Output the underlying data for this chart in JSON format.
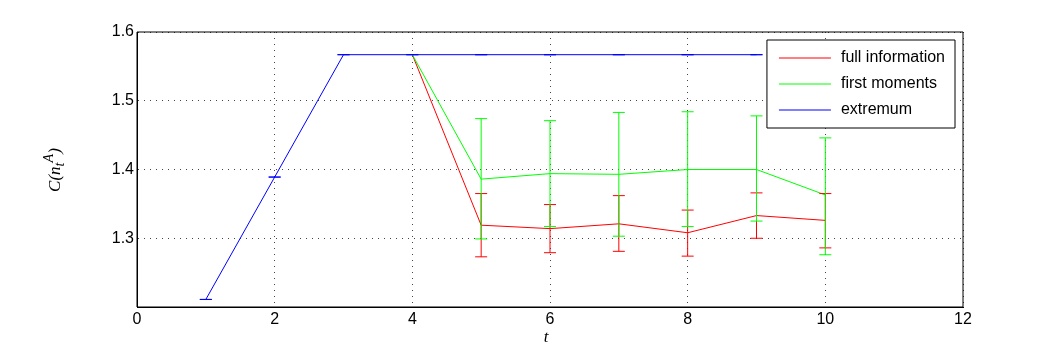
{
  "chart_data": {
    "type": "line",
    "xlabel": "t",
    "ylabel": "C(n$_{t}$$^{A}$)",
    "xlim": [
      0,
      12
    ],
    "xticks": [
      0,
      2,
      4,
      6,
      8,
      10,
      12
    ],
    "ylim": [
      1.2,
      1.6
    ],
    "yticks": [
      1.3,
      1.4,
      1.5,
      1.6
    ],
    "grid": true,
    "legend": "top right",
    "marker": "none",
    "line_style": "solid",
    "series": [
      {
        "name": "full information",
        "color": "#ff0000",
        "x": [
          4,
          5,
          6,
          7,
          8,
          9,
          10
        ],
        "values": [
          1.567,
          1.319,
          1.314,
          1.321,
          1.308,
          1.333,
          1.326
        ],
        "errors": [
          null,
          [
            1.273,
            1.365
          ],
          [
            1.279,
            1.349
          ],
          [
            1.281,
            1.362
          ],
          [
            1.274,
            1.341
          ],
          [
            1.3,
            1.366
          ],
          [
            1.286,
            1.365
          ]
        ]
      },
      {
        "name": "first moments",
        "color": "#00ff00",
        "x": [
          4,
          5,
          6,
          7,
          8,
          9,
          10
        ],
        "values": [
          1.567,
          1.386,
          1.394,
          1.393,
          1.4,
          1.4,
          1.363
        ],
        "errors": [
          null,
          [
            1.299,
            1.474
          ],
          [
            1.317,
            1.471
          ],
          [
            1.303,
            1.483
          ],
          [
            1.317,
            1.484
          ],
          [
            1.325,
            1.478
          ],
          [
            1.276,
            1.446
          ]
        ]
      },
      {
        "name": "extremum",
        "color": "#0000ff",
        "x": [
          1,
          2,
          3,
          4,
          5,
          6,
          7,
          8,
          9
        ],
        "values": [
          1.211,
          1.389,
          1.567,
          1.567,
          1.567,
          1.567,
          1.567,
          1.567,
          1.567
        ],
        "errors": [
          0,
          0,
          0,
          0,
          0,
          0,
          0,
          0,
          0
        ]
      }
    ]
  }
}
